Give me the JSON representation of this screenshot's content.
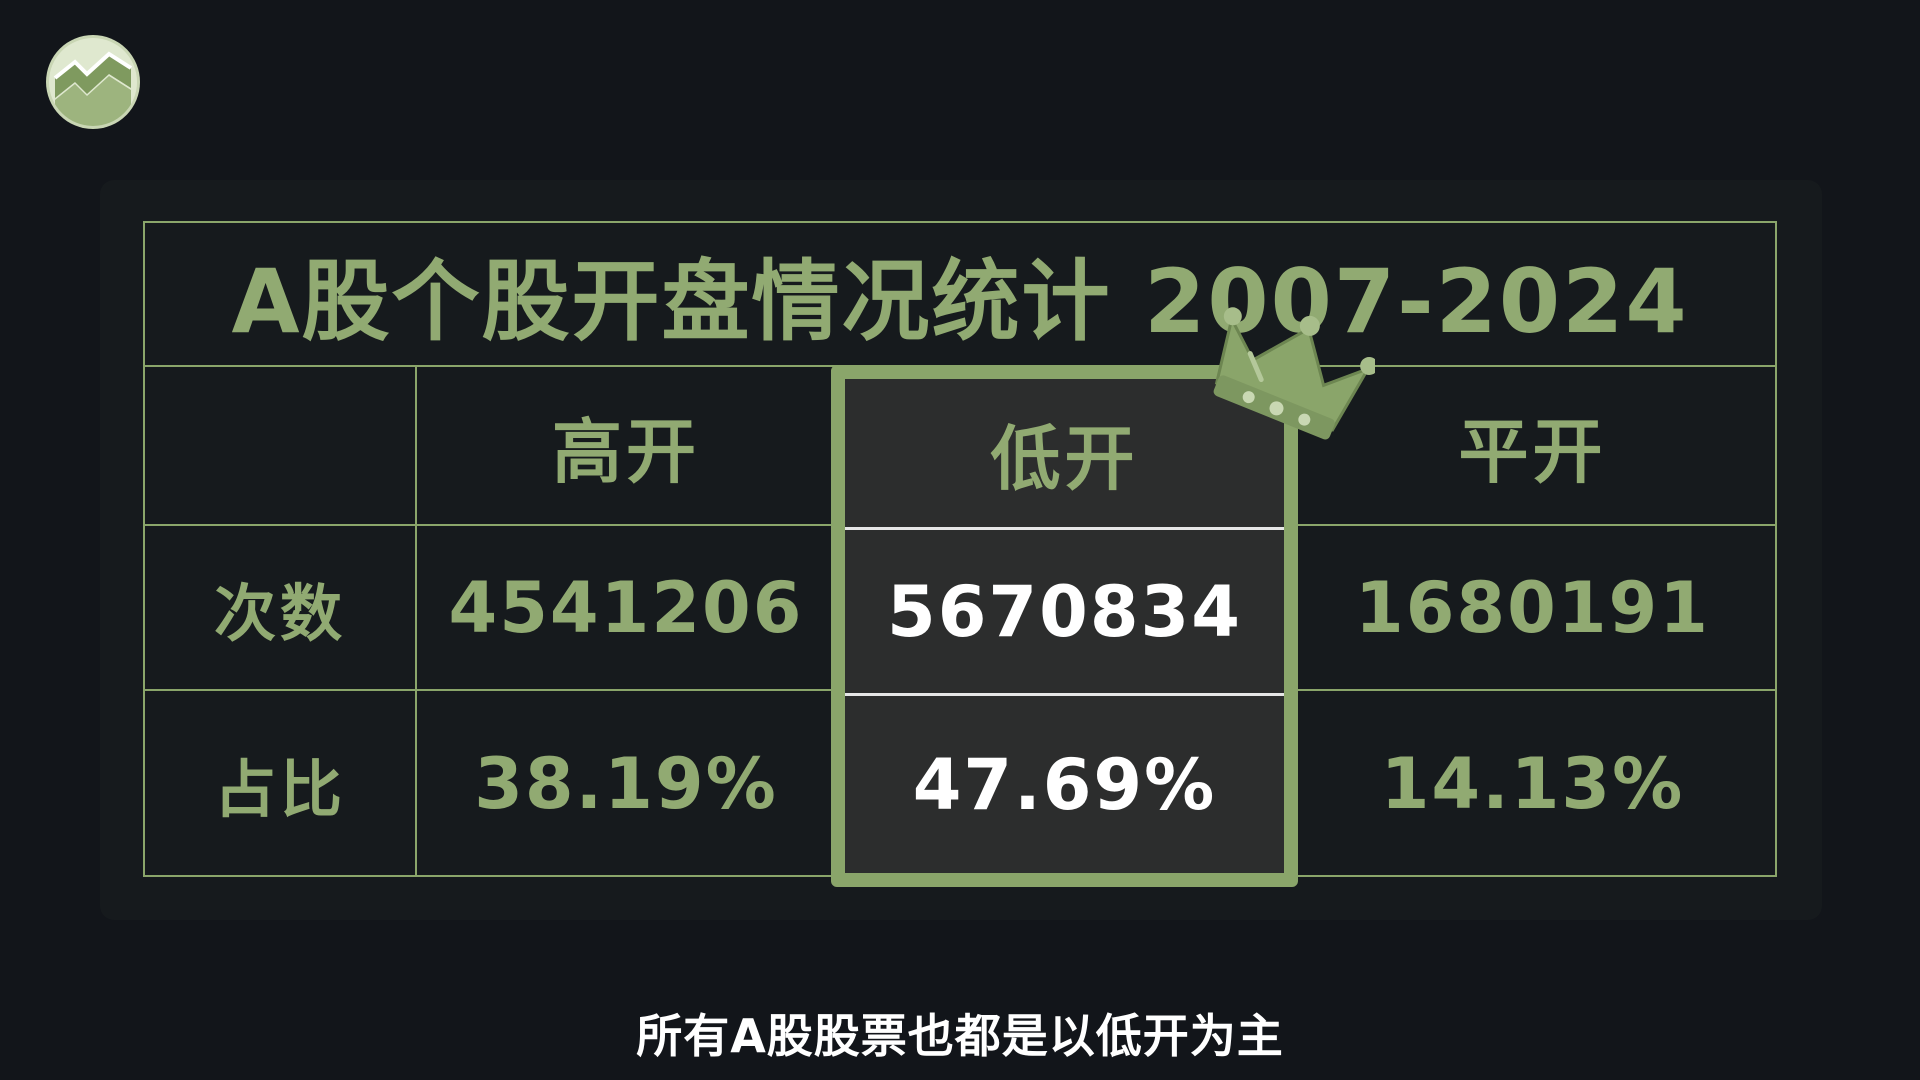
{
  "title": "A股个股开盘情况统计 2007-2024",
  "columns": {
    "gap_up": "高开",
    "gap_down": "低开",
    "flat": "平开"
  },
  "rows": {
    "count_label": "次数",
    "ratio_label": "占比"
  },
  "values": {
    "gap_up_count": "4541206",
    "gap_down_count": "5670834",
    "flat_count": "1680191",
    "gap_up_ratio": "38.19%",
    "gap_down_ratio": "47.69%",
    "flat_ratio": "14.13%"
  },
  "subtitle": "所有A股股票也都是以低开为主",
  "colors": {
    "background": "#12151a",
    "accent": "#8aa56a",
    "text_green": "#91aa72",
    "highlight_bg": "#2c2d2d",
    "highlight_text": "#ffffff"
  },
  "icons": {
    "logo": "chart-logo-icon",
    "crown": "crown-icon"
  }
}
